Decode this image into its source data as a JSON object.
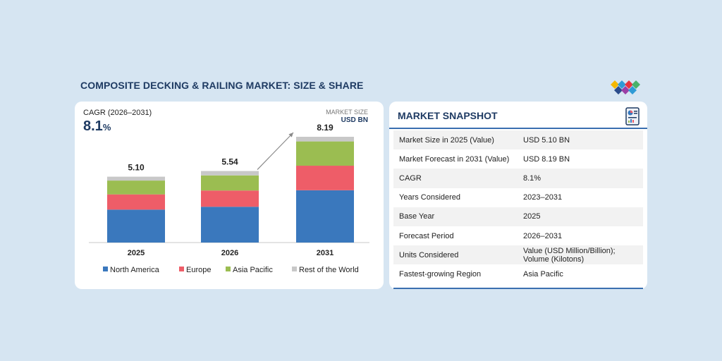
{
  "title": "COMPOSITE DECKING & RAILING MARKET: SIZE & SHARE",
  "colors": {
    "north_america": "#3a78bd",
    "europe": "#ee5d68",
    "asia_pacific": "#9bbd51",
    "rest_of_world": "#c8c8c8",
    "heading": "#1f3b63"
  },
  "cagr": {
    "label": "CAGR (2026–2031)",
    "value": "8.1",
    "unit": "%"
  },
  "market_size": {
    "label": "MARKET SIZE",
    "unit": "USD BN"
  },
  "chart_data": {
    "type": "bar",
    "stacked": true,
    "categories": [
      "2025",
      "2026",
      "2031"
    ],
    "totals": [
      5.1,
      5.54,
      8.19
    ],
    "total_labels": [
      "5.10",
      "5.54",
      "8.19"
    ],
    "series": [
      {
        "name": "North America",
        "values": [
          2.55,
          2.77,
          4.05
        ]
      },
      {
        "name": "Europe",
        "values": [
          1.18,
          1.26,
          1.9
        ]
      },
      {
        "name": "Asia Pacific",
        "values": [
          1.07,
          1.17,
          1.88
        ]
      },
      {
        "name": "Rest of the World",
        "values": [
          0.3,
          0.34,
          0.36
        ]
      }
    ],
    "ylim": [
      0,
      8.19
    ],
    "grid": false,
    "legend_position": "bottom"
  },
  "snapshot": {
    "title": "MARKET SNAPSHOT",
    "rows": [
      {
        "label": "Market Size in 2025 (Value)",
        "value": "USD 5.10 BN"
      },
      {
        "label": "Market Forecast in 2031 (Value)",
        "value": "USD 8.19 BN"
      },
      {
        "label": "CAGR",
        "value": "8.1%"
      },
      {
        "label": "Years Considered",
        "value": "2023–2031"
      },
      {
        "label": "Base Year",
        "value": "2025"
      },
      {
        "label": "Forecast Period",
        "value": "2026–2031"
      },
      {
        "label": "Units Considered",
        "value": "Value (USD Million/Billion); Volume (Kilotons)"
      },
      {
        "label": "Fastest-growing Region",
        "value": "Asia Pacific"
      }
    ]
  }
}
